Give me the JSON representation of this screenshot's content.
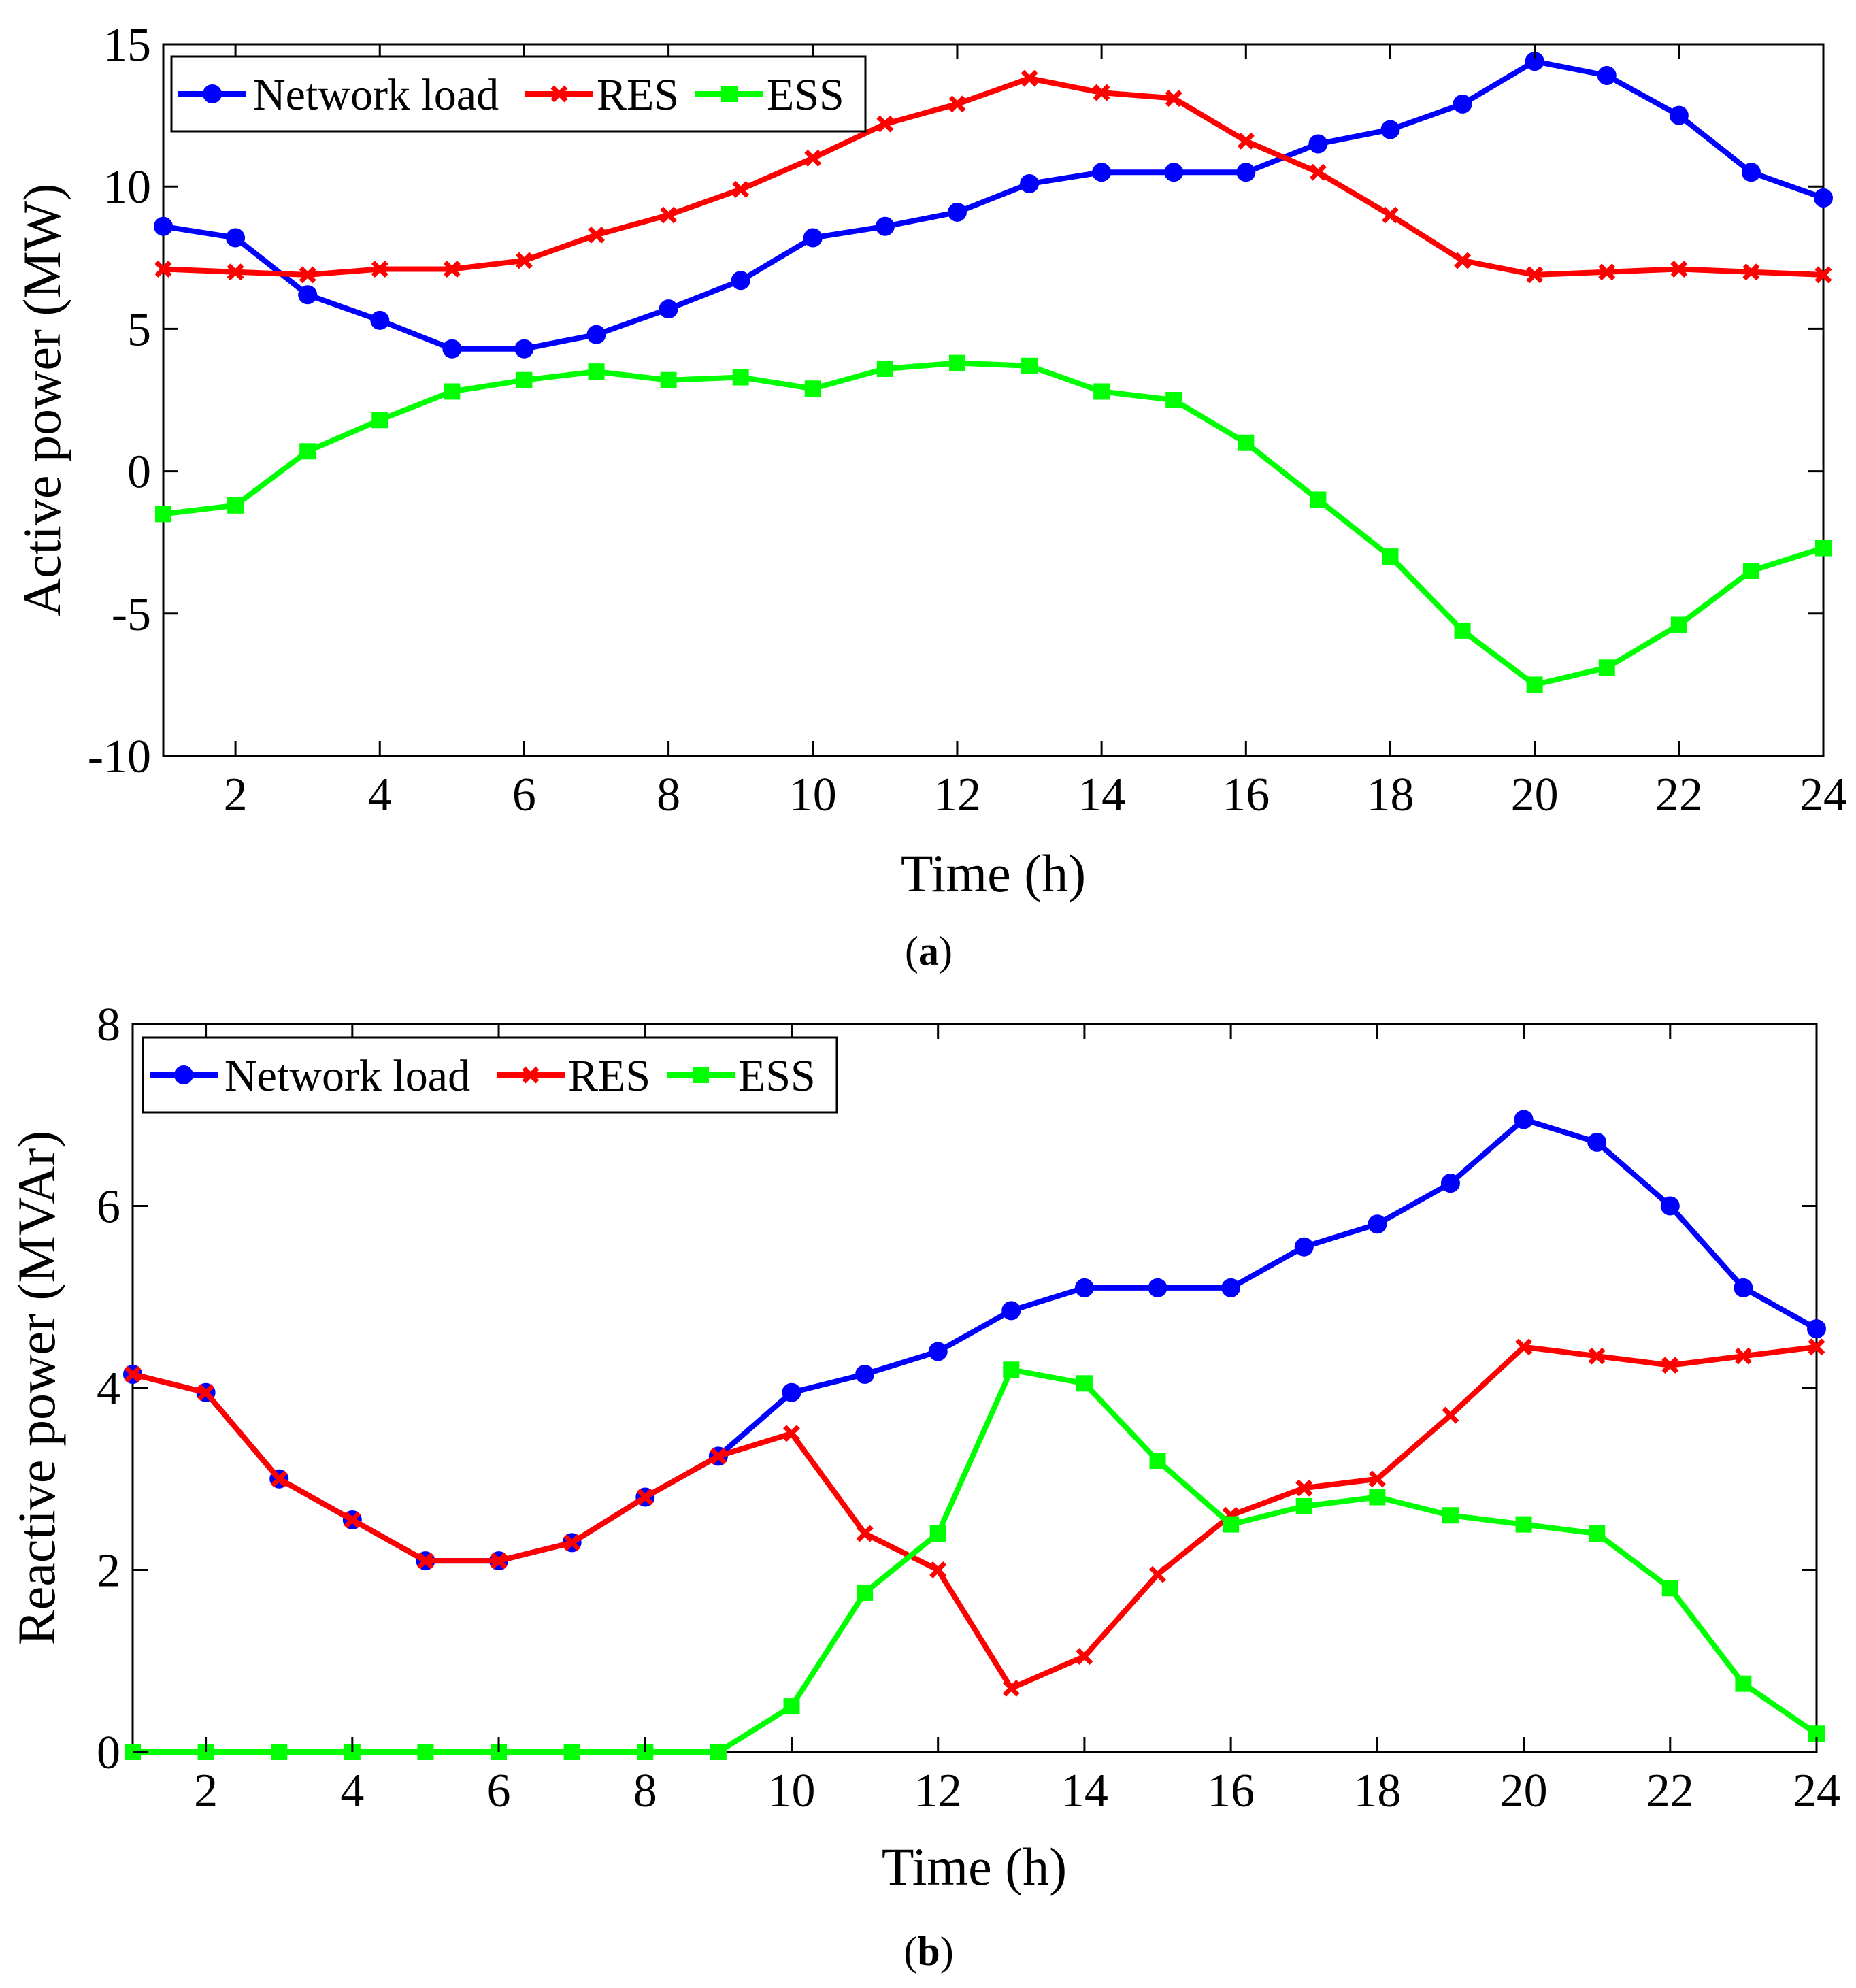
{
  "chart_data": [
    {
      "type": "line",
      "panel_label": "a",
      "xlabel": "Time (h)",
      "ylabel": "Active power (MW)",
      "xlim": [
        1,
        24
      ],
      "ylim": [
        -10,
        15
      ],
      "xticks": [
        2,
        4,
        6,
        8,
        10,
        12,
        14,
        16,
        18,
        20,
        22,
        24
      ],
      "yticks": [
        -10,
        -5,
        0,
        5,
        10,
        15
      ],
      "legend": [
        "Network load",
        "RES",
        "ESS"
      ],
      "legend_position": "top-left",
      "x": [
        1,
        2,
        3,
        4,
        5,
        6,
        7,
        8,
        9,
        10,
        11,
        12,
        13,
        14,
        15,
        16,
        17,
        18,
        19,
        20,
        21,
        22,
        23,
        24
      ],
      "series": [
        {
          "name": "Network load",
          "color": "#0000ff",
          "marker": "circle",
          "values": [
            8.6,
            8.2,
            6.2,
            5.3,
            4.3,
            4.3,
            4.8,
            5.7,
            6.7,
            8.2,
            8.6,
            9.1,
            10.1,
            10.5,
            10.5,
            10.5,
            11.5,
            12,
            12.9,
            14.4,
            13.9,
            12.5,
            10.5,
            9.6
          ]
        },
        {
          "name": "RES",
          "color": "#ff0000",
          "marker": "x",
          "values": [
            7.1,
            7,
            6.9,
            7.1,
            7.1,
            7.4,
            8.3,
            9,
            9.9,
            11,
            12.2,
            12.9,
            13.8,
            13.3,
            13.1,
            11.6,
            10.5,
            9,
            7.4,
            6.9,
            7,
            7.1,
            7,
            6.9
          ]
        },
        {
          "name": "ESS",
          "color": "#00ff00",
          "marker": "square",
          "values": [
            -1.5,
            -1.2,
            0.7,
            1.8,
            2.8,
            3.2,
            3.5,
            3.2,
            3.3,
            2.9,
            3.6,
            3.8,
            3.7,
            2.8,
            2.5,
            1,
            -1,
            -3,
            -5.6,
            -7.5,
            -6.9,
            -5.4,
            -3.5,
            -2.7
          ]
        }
      ]
    },
    {
      "type": "line",
      "panel_label": "b",
      "xlabel": "Time (h)",
      "ylabel": "Reactive power (MVAr)",
      "xlim": [
        1,
        24
      ],
      "ylim": [
        0,
        8
      ],
      "xticks": [
        2,
        4,
        6,
        8,
        10,
        12,
        14,
        16,
        18,
        20,
        22,
        24
      ],
      "yticks": [
        0,
        2,
        4,
        6,
        8
      ],
      "legend": [
        "Network load",
        "RES",
        "ESS"
      ],
      "legend_position": "top-left",
      "x": [
        1,
        2,
        3,
        4,
        5,
        6,
        7,
        8,
        9,
        10,
        11,
        12,
        13,
        14,
        15,
        16,
        17,
        18,
        19,
        20,
        21,
        22,
        23,
        24
      ],
      "series": [
        {
          "name": "Network load",
          "color": "#0000ff",
          "marker": "circle",
          "values": [
            4.15,
            3.95,
            3.0,
            2.55,
            2.1,
            2.1,
            2.3,
            2.8,
            3.25,
            3.95,
            4.15,
            4.4,
            4.85,
            5.1,
            5.1,
            5.1,
            5.55,
            5.8,
            6.25,
            6.95,
            6.7,
            6.0,
            5.1,
            4.65
          ]
        },
        {
          "name": "RES",
          "color": "#ff0000",
          "marker": "x",
          "values": [
            4.15,
            3.95,
            3.0,
            2.55,
            2.1,
            2.1,
            2.3,
            2.8,
            3.25,
            3.5,
            2.4,
            2.0,
            0.7,
            1.05,
            1.95,
            2.6,
            2.9,
            3.0,
            3.7,
            4.45,
            4.35,
            4.25,
            4.35,
            4.45
          ]
        },
        {
          "name": "ESS",
          "color": "#00ff00",
          "marker": "square",
          "values": [
            0,
            0,
            0,
            0,
            0,
            0,
            0,
            0,
            0,
            0.5,
            1.75,
            2.4,
            4.2,
            4.05,
            3.2,
            2.5,
            2.7,
            2.8,
            2.6,
            2.5,
            2.4,
            1.8,
            0.75,
            0.2
          ]
        }
      ]
    }
  ]
}
